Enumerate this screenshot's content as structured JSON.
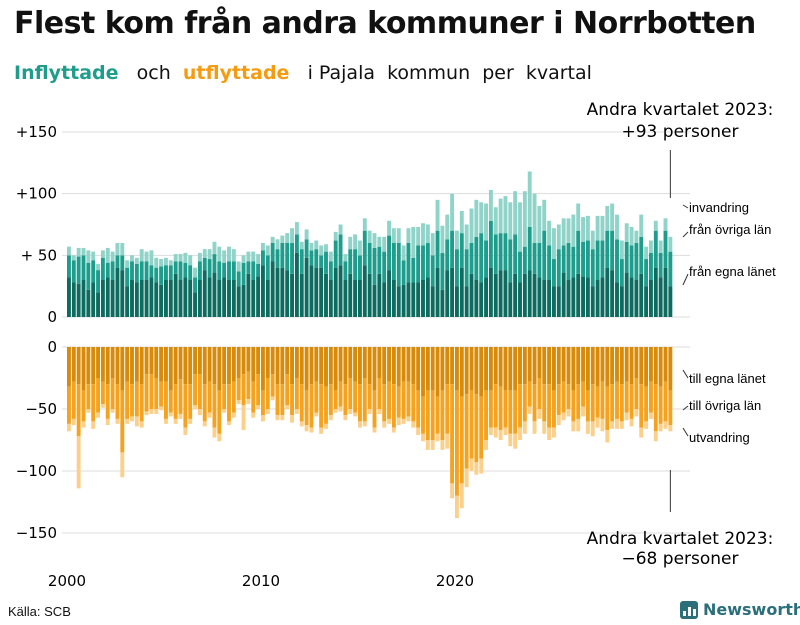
{
  "title": "Flest kom från andra kommuner i Norrbotten",
  "subtitle": {
    "inflyttade": "Inflyttade",
    "och": "och",
    "utflyttade": "utflyttade",
    "rest": "i Pajala  kommun  per  kvartal"
  },
  "source": "Källa: SCB",
  "brand": "Newsworthy",
  "colors": {
    "in_egna": "#0e6b5f",
    "in_ovriga": "#1f9d8c",
    "in_invandring": "#8fd3c9",
    "out_egna": "#d88a0a",
    "out_ovriga": "#f5a31e",
    "out_utvandring": "#fbd08a"
  },
  "chart_data": {
    "type": "bar",
    "stacked": true,
    "x_start": "2000 Q1",
    "x_ticks": [
      "2000",
      "2010",
      "2020"
    ],
    "top": {
      "yticks": [
        "+150",
        "+100",
        "+ 50",
        "0"
      ],
      "ylim": [
        0,
        150
      ],
      "series": [
        {
          "name": "från egna länet",
          "values": [
            32,
            28,
            27,
            30,
            22,
            28,
            20,
            30,
            32,
            30,
            40,
            38,
            25,
            30,
            28,
            30,
            30,
            32,
            28,
            26,
            30,
            30,
            35,
            30,
            32,
            30,
            20,
            30,
            38,
            32,
            36,
            30,
            32,
            30,
            30,
            25,
            26,
            35,
            30,
            33,
            42,
            30,
            45,
            40,
            40,
            38,
            35,
            52,
            35,
            48,
            42,
            40,
            40,
            35,
            30,
            40,
            42,
            30,
            35,
            30,
            30,
            42,
            35,
            26,
            35,
            28,
            38,
            30,
            25,
            26,
            28,
            28,
            28,
            30,
            32,
            25,
            40,
            22,
            38,
            40,
            25,
            40,
            25,
            35,
            30,
            28,
            32,
            40,
            35,
            38,
            38,
            28,
            35,
            28,
            35,
            38,
            35,
            32,
            30,
            30,
            25,
            25,
            36,
            30,
            32,
            35,
            33,
            32,
            25,
            30,
            32,
            40,
            38,
            28,
            25,
            36,
            32,
            30,
            35,
            25,
            30,
            40,
            32,
            40,
            25
          ]
        },
        {
          "name": "från övriga län",
          "values": [
            18,
            18,
            22,
            20,
            22,
            18,
            18,
            18,
            12,
            15,
            10,
            12,
            15,
            15,
            15,
            15,
            15,
            10,
            12,
            15,
            12,
            12,
            10,
            15,
            12,
            12,
            12,
            15,
            10,
            15,
            15,
            15,
            12,
            15,
            15,
            12,
            18,
            10,
            15,
            10,
            12,
            20,
            15,
            15,
            20,
            22,
            25,
            15,
            20,
            15,
            12,
            15,
            10,
            18,
            15,
            22,
            25,
            15,
            20,
            25,
            20,
            28,
            25,
            30,
            22,
            25,
            28,
            30,
            35,
            20,
            32,
            20,
            30,
            28,
            28,
            25,
            30,
            30,
            25,
            30,
            30,
            28,
            30,
            25,
            35,
            40,
            30,
            38,
            32,
            30,
            30,
            35,
            32,
            25,
            22,
            35,
            25,
            28,
            40,
            28,
            22,
            30,
            22,
            30,
            25,
            35,
            28,
            30,
            30,
            32,
            30,
            30,
            32,
            35,
            22,
            25,
            26,
            30,
            30,
            22,
            22,
            30,
            20,
            30,
            28
          ]
        },
        {
          "name": "invandring",
          "values": [
            7,
            4,
            7,
            6,
            10,
            7,
            5,
            6,
            12,
            8,
            10,
            10,
            6,
            5,
            5,
            10,
            8,
            12,
            8,
            6,
            6,
            4,
            6,
            6,
            8,
            8,
            8,
            7,
            7,
            8,
            10,
            12,
            10,
            12,
            10,
            8,
            6,
            8,
            8,
            8,
            6,
            8,
            5,
            8,
            6,
            8,
            12,
            10,
            6,
            8,
            6,
            7,
            8,
            6,
            8,
            7,
            8,
            6,
            10,
            12,
            12,
            10,
            10,
            12,
            8,
            12,
            12,
            12,
            12,
            12,
            12,
            25,
            15,
            18,
            15,
            18,
            25,
            22,
            20,
            30,
            15,
            18,
            20,
            28,
            30,
            25,
            30,
            25,
            22,
            28,
            30,
            30,
            35,
            40,
            45,
            45,
            40,
            30,
            25,
            20,
            25,
            20,
            22,
            20,
            26,
            22,
            20,
            20,
            15,
            20,
            20,
            20,
            22,
            20,
            15,
            15,
            15,
            10,
            18,
            10,
            10,
            8,
            10,
            10,
            12
          ]
        }
      ],
      "annotation": [
        "Andra kvartalet 2023:",
        "+93 personer"
      ]
    },
    "bottom": {
      "yticks": [
        "0",
        "−50",
        "−100",
        "−150"
      ],
      "ylim": [
        -150,
        0
      ],
      "series": [
        {
          "name": "till egna länet",
          "values": [
            32,
            28,
            30,
            35,
            30,
            30,
            25,
            28,
            30,
            25,
            30,
            35,
            28,
            30,
            28,
            30,
            22,
            22,
            25,
            28,
            28,
            35,
            30,
            26,
            30,
            30,
            22,
            22,
            30,
            28,
            30,
            35,
            30,
            30,
            28,
            25,
            22,
            20,
            28,
            22,
            35,
            25,
            22,
            30,
            30,
            22,
            30,
            25,
            30,
            35,
            30,
            28,
            30,
            32,
            30,
            35,
            28,
            30,
            25,
            28,
            30,
            25,
            30,
            35,
            25,
            30,
            28,
            30,
            32,
            28,
            28,
            30,
            35,
            40,
            35,
            35,
            40,
            35,
            30,
            30,
            35,
            40,
            38,
            35,
            38,
            40,
            35,
            35,
            30,
            32,
            35,
            35,
            35,
            30,
            30,
            28,
            30,
            25,
            30,
            30,
            35,
            30,
            28,
            30,
            35,
            30,
            28,
            35,
            30,
            32,
            28,
            32,
            30,
            28,
            30,
            28,
            30,
            25,
            30,
            32,
            28,
            30,
            32,
            28,
            35
          ]
        },
        {
          "name": "till övriga län",
          "values": [
            30,
            30,
            42,
            25,
            20,
            30,
            28,
            18,
            28,
            25,
            28,
            50,
            30,
            26,
            28,
            30,
            30,
            28,
            25,
            20,
            30,
            18,
            28,
            28,
            35,
            28,
            25,
            28,
            30,
            25,
            35,
            35,
            20,
            30,
            25,
            18,
            25,
            22,
            25,
            25,
            20,
            25,
            18,
            25,
            25,
            25,
            25,
            25,
            30,
            28,
            35,
            25,
            35,
            30,
            25,
            15,
            20,
            25,
            25,
            25,
            30,
            35,
            20,
            30,
            25,
            30,
            30,
            35,
            25,
            30,
            28,
            30,
            30,
            30,
            40,
            40,
            30,
            40,
            40,
            80,
            85,
            70,
            60,
            55,
            55,
            50,
            40,
            30,
            35,
            35,
            30,
            35,
            35,
            35,
            30,
            20,
            30,
            25,
            30,
            35,
            30,
            25,
            25,
            20,
            25,
            28,
            20,
            25,
            30,
            25,
            30,
            35,
            30,
            30,
            30,
            25,
            28,
            25,
            35,
            28,
            25,
            38,
            30,
            32,
            28
          ]
        },
        {
          "name": "utvandring",
          "values": [
            6,
            5,
            42,
            5,
            3,
            6,
            4,
            3,
            5,
            3,
            4,
            20,
            4,
            4,
            8,
            5,
            3,
            4,
            4,
            3,
            4,
            3,
            4,
            4,
            6,
            4,
            3,
            5,
            4,
            4,
            8,
            6,
            3,
            3,
            4,
            3,
            20,
            4,
            4,
            3,
            5,
            4,
            3,
            4,
            4,
            3,
            6,
            4,
            4,
            5,
            4,
            3,
            5,
            4,
            4,
            3,
            4,
            4,
            4,
            3,
            5,
            4,
            4,
            4,
            4,
            5,
            4,
            4,
            6,
            4,
            4,
            5,
            6,
            6,
            8,
            8,
            6,
            8,
            12,
            12,
            18,
            20,
            15,
            10,
            10,
            12,
            8,
            6,
            8,
            8,
            6,
            10,
            12,
            10,
            10,
            6,
            10,
            8,
            10,
            10,
            8,
            8,
            6,
            6,
            8,
            10,
            8,
            10,
            12,
            8,
            10,
            10,
            6,
            8,
            6,
            6,
            6,
            6,
            8,
            6,
            5,
            8,
            6,
            6,
            5
          ]
        }
      ],
      "annotation": [
        "Andra kvartalet 2023:",
        "−68 personer"
      ]
    },
    "labels_in": [
      "invandring",
      "från övriga län",
      "från egna länet"
    ],
    "labels_out": [
      "till egna länet",
      "till övriga län",
      "utvandring"
    ]
  }
}
